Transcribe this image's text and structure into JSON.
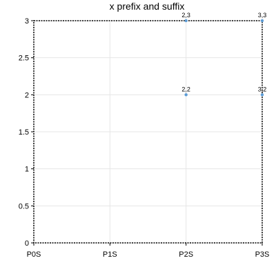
{
  "chart_data": {
    "type": "scatter",
    "title": "x prefix and suffix",
    "xlabel": "",
    "ylabel": "",
    "x_categories": [
      "P0S",
      "P1S",
      "P2S",
      "P3S"
    ],
    "xlim": [
      0,
      3
    ],
    "ylim": [
      0,
      3
    ],
    "yticks": [
      "0",
      "0.5",
      "1",
      "1.5",
      "2",
      "2.5",
      "3"
    ],
    "ytick_values": [
      0,
      0.5,
      1,
      1.5,
      2,
      2.5,
      3
    ],
    "grid": true,
    "legend": "none",
    "series": [
      {
        "points": [
          {
            "x": 2,
            "y": 3,
            "label": "2,3"
          },
          {
            "x": 3,
            "y": 3,
            "label": "3,3"
          },
          {
            "x": 2,
            "y": 2,
            "label": "2,2"
          },
          {
            "x": 3,
            "y": 2,
            "label": "3,2"
          }
        ],
        "color": "#5b9bd5"
      }
    ]
  }
}
